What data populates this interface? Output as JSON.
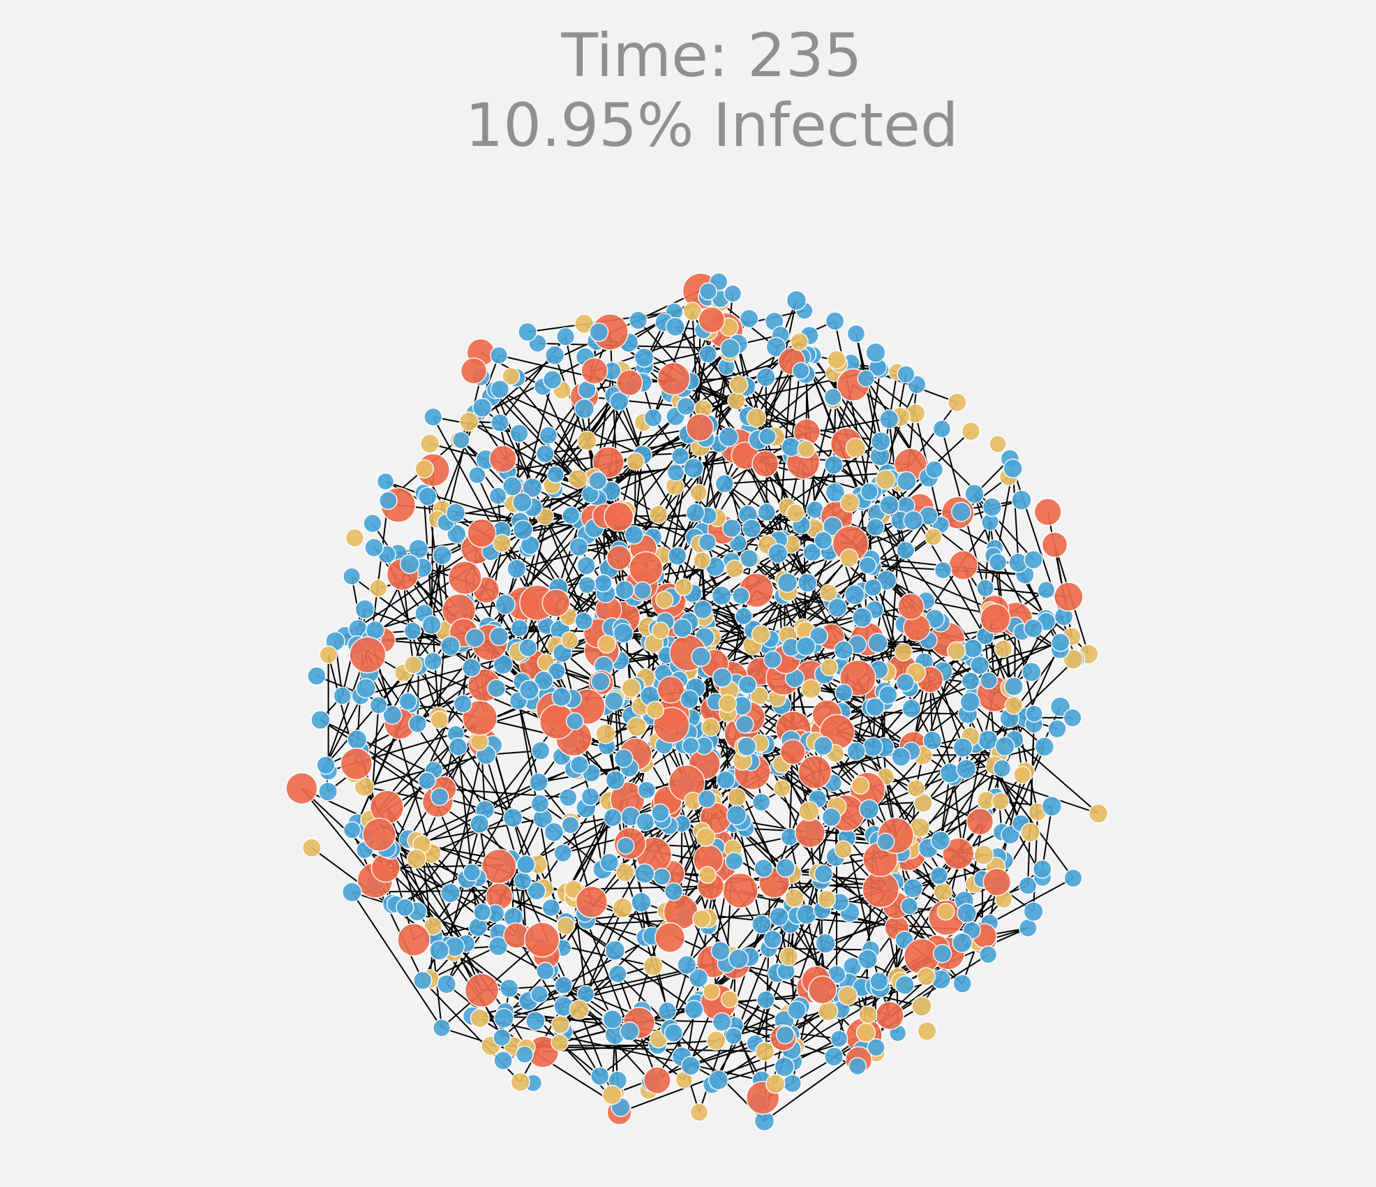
{
  "header": {
    "time_label": "Time: 235",
    "infected_label": "10.95% Infected"
  },
  "network": {
    "node_colors": {
      "susceptible": "#4da6d8",
      "infected": "#ee6c4d",
      "recovered": "#e8bd64"
    },
    "edge_color": "#000000",
    "infected_percent": 10.95,
    "time_step": 235
  }
}
